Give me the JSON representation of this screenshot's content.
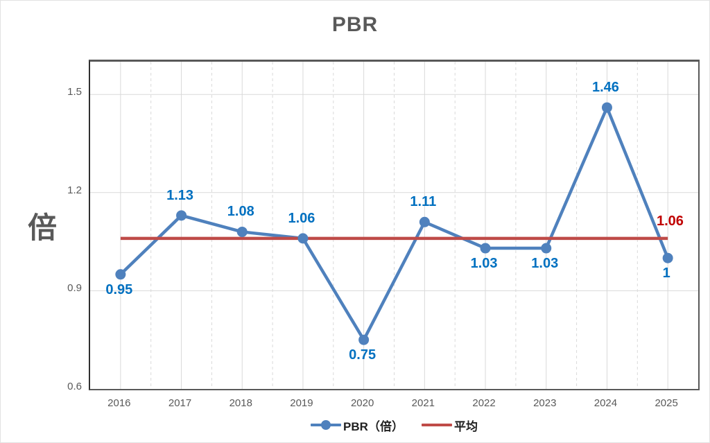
{
  "chart_data": {
    "type": "line",
    "title": "PBR",
    "ylabel": "倍",
    "categories": [
      "2016",
      "2017",
      "2018",
      "2019",
      "2020",
      "2021",
      "2022",
      "2023",
      "2024",
      "2025"
    ],
    "series": [
      {
        "name": "PBR（倍）",
        "type": "line",
        "color": "#4f81bd",
        "label_color": "#0070c0",
        "values": [
          0.95,
          1.13,
          1.08,
          1.06,
          0.75,
          1.11,
          1.03,
          1.03,
          1.46,
          1.0
        ],
        "labels": [
          "0.95",
          "1.13",
          "1.08",
          "1.06",
          "0.75",
          "1.11",
          "1.03",
          "1.03",
          "1.46",
          "1"
        ],
        "label_positions": [
          "below",
          "above",
          "above",
          "above",
          "below",
          "above",
          "below",
          "below",
          "above",
          "below"
        ]
      },
      {
        "name": "平均",
        "type": "constant-line",
        "color": "#bf4b48",
        "value": 1.06,
        "label": "1.06",
        "label_color": "#c00000"
      }
    ],
    "ylim": [
      0.6,
      1.6
    ],
    "yticks": [
      0.6,
      0.9,
      1.2,
      1.5
    ],
    "grid": {
      "horizontal": "solid",
      "vertical_at_categories": "solid",
      "vertical_at_boundaries": "dashed",
      "color": "#d9d9d9"
    },
    "legend_position": "bottom-center"
  }
}
